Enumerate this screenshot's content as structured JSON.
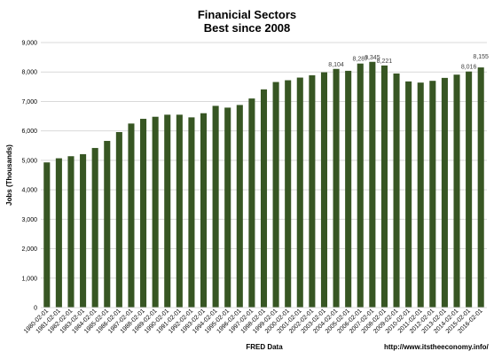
{
  "chart_data": {
    "type": "bar",
    "title": "Finanicial Sectors",
    "subtitle": "Best since 2008",
    "ylabel": "Jobs (Thousands)",
    "xlabel": "FRED Data",
    "source_url": "http://www.itstheeconomy.info/",
    "ylim": [
      0,
      9000
    ],
    "yticks": [
      0,
      1000,
      2000,
      3000,
      4000,
      5000,
      6000,
      7000,
      8000,
      9000
    ],
    "ytick_labels": [
      "0",
      "1,000",
      "2,000",
      "3,000",
      "4,000",
      "5,000",
      "6,000",
      "7,000",
      "8,000",
      "9,000"
    ],
    "bar_color": "#375623",
    "grid": true,
    "legend": "none",
    "categories": [
      "1980-02-01",
      "1981-02-01",
      "1982-02-01",
      "1983-02-01",
      "1984-02-01",
      "1985-02-01",
      "1986-02-01",
      "1987-02-01",
      "1988-02-01",
      "1989-02-01",
      "1990-02-01",
      "1991-02-01",
      "1992-02-01",
      "1993-02-01",
      "1994-02-01",
      "1995-02-01",
      "1996-02-01",
      "1997-02-01",
      "1998-02-01",
      "1999-02-01",
      "2000-02-01",
      "2001-02-01",
      "2002-02-01",
      "2003-02-01",
      "2004-02-01",
      "2005-02-01",
      "2006-02-01",
      "2007-02-01",
      "2008-02-01",
      "2009-02-01",
      "2010-02-01",
      "2011-02-01",
      "2012-02-01",
      "2013-02-01",
      "2014-02-01",
      "2015-02-01",
      "2016-02-01"
    ],
    "values": [
      4930,
      5070,
      5140,
      5210,
      5420,
      5660,
      5960,
      6250,
      6410,
      6480,
      6550,
      6550,
      6460,
      6600,
      6850,
      6790,
      6880,
      7100,
      7410,
      7660,
      7720,
      7810,
      7890,
      7990,
      8104,
      8040,
      8287,
      8345,
      8221,
      7950,
      7680,
      7640,
      7700,
      7800,
      7910,
      8016,
      8155
    ],
    "data_labels": [
      {
        "index": 24,
        "text": "8,104"
      },
      {
        "index": 26,
        "text": "8,287"
      },
      {
        "index": 27,
        "text": "8,345"
      },
      {
        "index": 28,
        "text": "8,221"
      },
      {
        "index": 35,
        "text": "8,016"
      },
      {
        "index": 36,
        "text": "8,155"
      }
    ]
  }
}
